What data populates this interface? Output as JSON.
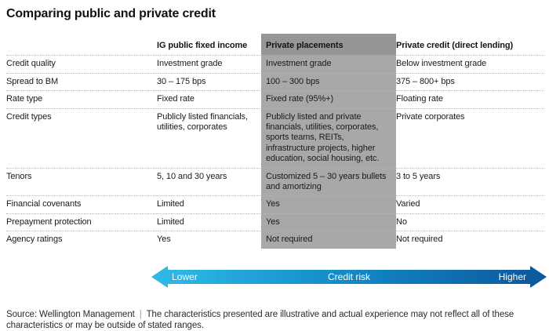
{
  "title": "Comparing public and private credit",
  "table": {
    "columns": [
      "",
      "IG public fixed income",
      "Private placements",
      "Private credit (direct lending)"
    ],
    "rows": [
      {
        "label": "Credit quality",
        "values": [
          "Investment grade",
          "Investment grade",
          "Below investment grade"
        ]
      },
      {
        "label": "Spread to BM",
        "values": [
          "30 – 175 bps",
          "100 – 300 bps",
          "375 – 800+ bps"
        ]
      },
      {
        "label": "Rate type",
        "values": [
          "Fixed rate",
          "Fixed rate (95%+)",
          "Floating rate"
        ]
      },
      {
        "label": "Credit types",
        "values": [
          "Publicly listed financials, utilities, corporates",
          "Publicly listed and private financials, utilities, corporates, sports teams, REITs, infrastructure projects, higher education, social housing, etc.",
          "Private corporates"
        ]
      },
      {
        "label": "Tenors",
        "values": [
          "5, 10 and 30 years",
          "Customized 5 – 30 years bullets and amortizing",
          "3 to 5 years"
        ]
      },
      {
        "label": "Financial covenants",
        "values": [
          "Limited",
          "Yes",
          "Varied"
        ]
      },
      {
        "label": "Prepayment protection",
        "values": [
          "Limited",
          "Yes",
          "No"
        ]
      },
      {
        "label": "Agency ratings",
        "values": [
          "Yes",
          "Not required",
          "Not required"
        ]
      }
    ]
  },
  "risk_arrow": {
    "left_label": "Lower",
    "center_label": "Credit risk",
    "right_label": "Higher",
    "gradient_start": "#2db8e8",
    "gradient_end": "#0d599e"
  },
  "footer": {
    "source": "Source: Wellington Management",
    "separator": "|",
    "disclaimer": "The characteristics presented are illustrative and actual experience may not reflect all of these characteristics or may be outside of stated ranges."
  },
  "colors": {
    "highlight_column_header": "#949697",
    "highlight_column_body": "#a7a9a9"
  }
}
